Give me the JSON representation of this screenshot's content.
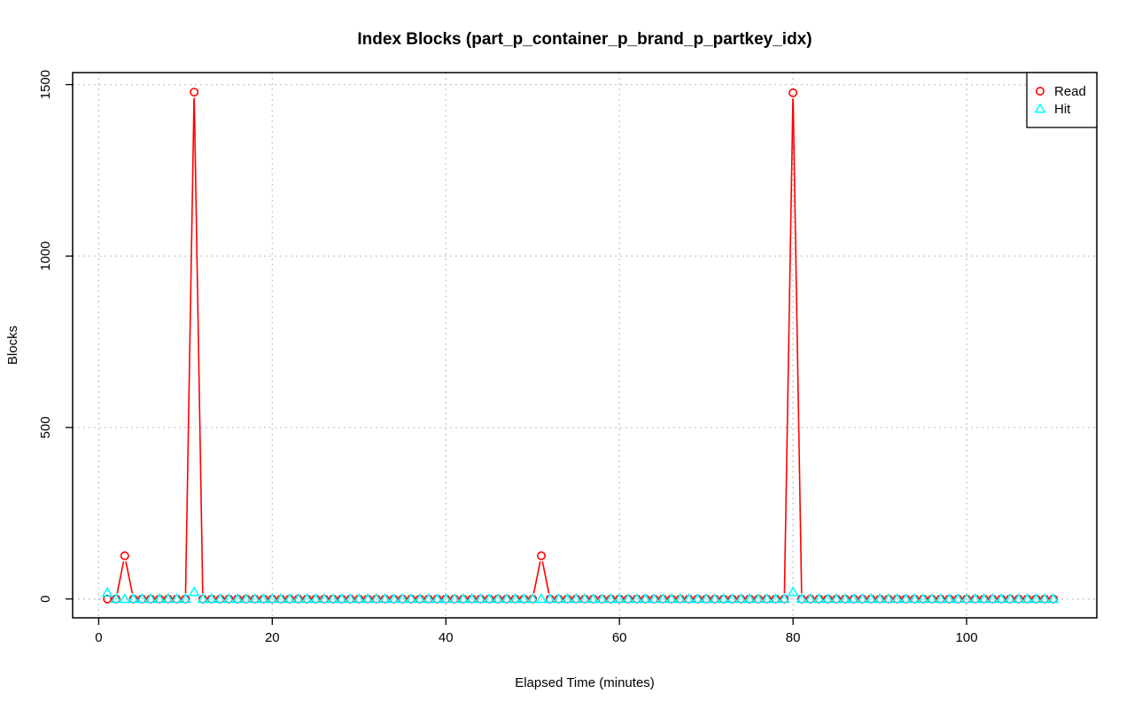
{
  "chart_data": {
    "type": "line",
    "title": "Index Blocks (part_p_container_p_brand_p_partkey_idx)",
    "xlabel": "Elapsed Time (minutes)",
    "ylabel": "Blocks",
    "xlim": [
      -3,
      115
    ],
    "ylim": [
      -55,
      1535
    ],
    "xticks": [
      0,
      20,
      40,
      60,
      80,
      100
    ],
    "yticks": [
      0,
      500,
      1000,
      1500
    ],
    "grid": true,
    "legend_position": "top-right",
    "x": [
      1,
      2,
      3,
      4,
      5,
      6,
      7,
      8,
      9,
      10,
      11,
      12,
      13,
      14,
      15,
      16,
      17,
      18,
      19,
      20,
      21,
      22,
      23,
      24,
      25,
      26,
      27,
      28,
      29,
      30,
      31,
      32,
      33,
      34,
      35,
      36,
      37,
      38,
      39,
      40,
      41,
      42,
      43,
      44,
      45,
      46,
      47,
      48,
      49,
      50,
      51,
      52,
      53,
      54,
      55,
      56,
      57,
      58,
      59,
      60,
      61,
      62,
      63,
      64,
      65,
      66,
      67,
      68,
      69,
      70,
      71,
      72,
      73,
      74,
      75,
      76,
      77,
      78,
      79,
      80,
      81,
      82,
      83,
      84,
      85,
      86,
      87,
      88,
      89,
      90,
      91,
      92,
      93,
      94,
      95,
      96,
      97,
      98,
      99,
      100,
      101,
      102,
      103,
      104,
      105,
      106,
      107,
      108,
      109,
      110
    ],
    "series": [
      {
        "name": "Read",
        "color": "#ff0000",
        "marker": "circle",
        "values": [
          0,
          0,
          126,
          0,
          0,
          0,
          0,
          0,
          0,
          0,
          1478,
          0,
          0,
          0,
          0,
          0,
          0,
          0,
          0,
          0,
          0,
          0,
          0,
          0,
          0,
          0,
          0,
          0,
          0,
          0,
          0,
          0,
          0,
          0,
          0,
          0,
          0,
          0,
          0,
          0,
          0,
          0,
          0,
          0,
          0,
          0,
          0,
          0,
          0,
          0,
          126,
          0,
          0,
          0,
          0,
          0,
          0,
          0,
          0,
          0,
          0,
          0,
          0,
          0,
          0,
          0,
          0,
          0,
          0,
          0,
          0,
          0,
          0,
          0,
          0,
          0,
          0,
          0,
          0,
          1476,
          0,
          0,
          0,
          0,
          0,
          0,
          0,
          0,
          0,
          0,
          0,
          0,
          0,
          0,
          0,
          0,
          0,
          0,
          0,
          0,
          0,
          0,
          0,
          0,
          0,
          0,
          0,
          0,
          0,
          0
        ]
      },
      {
        "name": "Hit",
        "color": "#00ffff",
        "marker": "triangle",
        "values": [
          18,
          0,
          0,
          0,
          0,
          0,
          0,
          0,
          0,
          0,
          20,
          0,
          0,
          0,
          0,
          0,
          0,
          0,
          0,
          0,
          0,
          0,
          0,
          0,
          0,
          0,
          0,
          0,
          0,
          0,
          0,
          0,
          0,
          0,
          0,
          0,
          0,
          0,
          0,
          0,
          0,
          0,
          0,
          0,
          0,
          0,
          0,
          0,
          0,
          0,
          0,
          0,
          0,
          0,
          0,
          0,
          0,
          0,
          0,
          0,
          0,
          0,
          0,
          0,
          0,
          0,
          0,
          0,
          0,
          0,
          0,
          0,
          0,
          0,
          0,
          0,
          0,
          0,
          0,
          20,
          0,
          0,
          0,
          0,
          0,
          0,
          0,
          0,
          0,
          0,
          0,
          0,
          0,
          0,
          0,
          0,
          0,
          0,
          0,
          0,
          0,
          0,
          0,
          0,
          0,
          0,
          0,
          0,
          0,
          0
        ]
      }
    ]
  }
}
